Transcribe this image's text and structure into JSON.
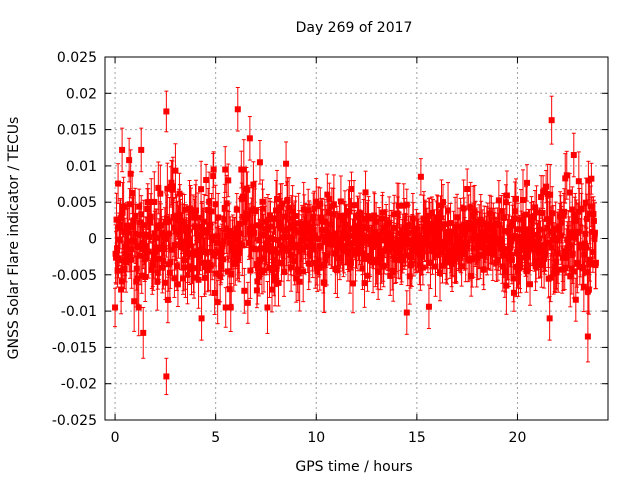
{
  "chart_data": {
    "type": "scatter",
    "title": "Day 269 of 2017",
    "xlabel": "GPS time / hours",
    "ylabel": "GNSS Solar Flare indicator / TECUs",
    "xlim": [
      -0.5,
      24.5
    ],
    "ylim": [
      -0.025,
      0.025
    ],
    "xticks": [
      0,
      5,
      10,
      15,
      20
    ],
    "xtick_labels": [
      "0",
      "5",
      "10",
      "15",
      "20"
    ],
    "yticks": [
      -0.025,
      -0.02,
      -0.015,
      -0.01,
      -0.005,
      0,
      0.005,
      0.01,
      0.015,
      0.02,
      0.025
    ],
    "ytick_labels": [
      "-0.025",
      "-0.02",
      "-0.015",
      "-0.01",
      "-0.005",
      "0",
      "0.005",
      "0.01",
      "0.015",
      "0.02",
      "0.025"
    ],
    "grid": true,
    "series": [
      {
        "name": "GNSS Solar Flare indicator",
        "color": "#ff0000",
        "marker": "square",
        "x_start": 0.0,
        "x_end": 23.9,
        "sample_step": 0.025,
        "typical_error": 0.0035,
        "spread_profile": [
          {
            "x": 0.0,
            "sd": 0.0045
          },
          {
            "x": 6.0,
            "sd": 0.005
          },
          {
            "x": 9.0,
            "sd": 0.0035
          },
          {
            "x": 15.0,
            "sd": 0.0025
          },
          {
            "x": 18.5,
            "sd": 0.0025
          },
          {
            "x": 21.0,
            "sd": 0.004
          },
          {
            "x": 23.9,
            "sd": 0.0048
          }
        ],
        "highlight_points": [
          {
            "x": 2.55,
            "y": 0.0175,
            "err": 0.0028
          },
          {
            "x": 2.55,
            "y": -0.019,
            "err": 0.0025
          },
          {
            "x": 6.1,
            "y": 0.0178,
            "err": 0.003
          },
          {
            "x": 6.7,
            "y": 0.0138,
            "err": 0.003
          },
          {
            "x": 1.4,
            "y": -0.013,
            "err": 0.0035
          },
          {
            "x": 0.35,
            "y": 0.0122,
            "err": 0.003
          },
          {
            "x": 1.3,
            "y": 0.0122,
            "err": 0.003
          },
          {
            "x": 8.5,
            "y": 0.0103,
            "err": 0.003
          },
          {
            "x": 4.3,
            "y": -0.011,
            "err": 0.003
          },
          {
            "x": 14.5,
            "y": -0.0102,
            "err": 0.003
          },
          {
            "x": 15.6,
            "y": -0.0094,
            "err": 0.003
          },
          {
            "x": 21.7,
            "y": 0.0163,
            "err": 0.0033
          },
          {
            "x": 21.6,
            "y": -0.011,
            "err": 0.003
          },
          {
            "x": 23.5,
            "y": -0.0135,
            "err": 0.0035
          },
          {
            "x": 22.8,
            "y": 0.0115,
            "err": 0.003
          },
          {
            "x": 15.2,
            "y": 0.0085,
            "err": 0.0025
          },
          {
            "x": 0.7,
            "y": 0.0108,
            "err": 0.003
          },
          {
            "x": 7.2,
            "y": 0.0105,
            "err": 0.003
          }
        ]
      }
    ]
  }
}
